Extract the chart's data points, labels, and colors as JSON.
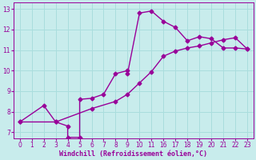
{
  "xlabel": "Windchill (Refroidissement éolien,°C)",
  "bg_color": "#c8ecec",
  "line_color": "#990099",
  "grid_color": "#aadddd",
  "ylim": [
    6.7,
    13.3
  ],
  "yticks": [
    7,
    8,
    9,
    10,
    11,
    12,
    13
  ],
  "xtick_labels": [
    "0",
    "1",
    "2",
    "3",
    "4",
    "5",
    "6",
    "7",
    "8",
    "9",
    "10",
    "11",
    "16",
    "17",
    "18",
    "19",
    "20",
    "21",
    "22",
    "23"
  ],
  "xtick_pos": [
    0,
    1,
    2,
    3,
    4,
    5,
    6,
    7,
    8,
    9,
    10,
    11,
    12,
    13,
    14,
    15,
    16,
    17,
    18,
    19
  ],
  "xlim": [
    -0.5,
    19.5
  ],
  "line1_x_raw": [
    0,
    2,
    3,
    4,
    4,
    5,
    5,
    6,
    7,
    8,
    9,
    9,
    10,
    11,
    12,
    13,
    14,
    15,
    16,
    17,
    18,
    19
  ],
  "line1_y": [
    7.5,
    8.3,
    7.5,
    7.3,
    6.75,
    6.75,
    8.6,
    8.65,
    8.85,
    9.85,
    10.0,
    9.85,
    12.8,
    12.9,
    12.4,
    12.1,
    11.45,
    11.65,
    11.55,
    11.1,
    11.1,
    11.05
  ],
  "line2_x_raw": [
    0,
    3,
    6,
    8,
    9,
    10,
    11,
    12,
    13,
    14,
    15,
    16,
    17,
    18,
    19
  ],
  "line2_y": [
    7.5,
    7.5,
    8.15,
    8.5,
    8.85,
    9.4,
    9.95,
    10.7,
    10.95,
    11.1,
    11.2,
    11.35,
    11.5,
    11.6,
    11.05
  ],
  "marker": "D",
  "markersize": 2.5,
  "linewidth": 1.0,
  "tick_fontsize": 5.5,
  "xlabel_fontsize": 6.0
}
